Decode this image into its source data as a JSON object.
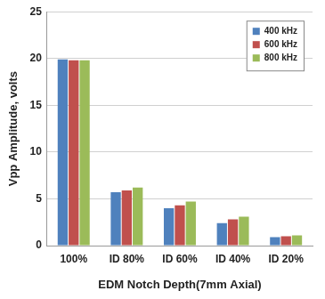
{
  "chart_data": {
    "type": "bar",
    "categories": [
      "100%",
      "ID 80%",
      "ID 60%",
      "ID 40%",
      "ID 20%"
    ],
    "series": [
      {
        "name": "400 kHz",
        "color": "#4f81bd",
        "values": [
          19.9,
          5.7,
          4.0,
          2.4,
          0.9
        ]
      },
      {
        "name": "600 kHz",
        "color": "#c0504d",
        "values": [
          19.8,
          5.9,
          4.3,
          2.8,
          1.0
        ]
      },
      {
        "name": "800 kHz",
        "color": "#9bbb59",
        "values": [
          19.8,
          6.2,
          4.7,
          3.1,
          1.1
        ]
      }
    ],
    "x_label": "EDM Notch Depth(7mm Axial)",
    "y_label": "Vpp Amplitude, volts",
    "ylim": [
      0,
      25
    ],
    "yticks": [
      0,
      5,
      10,
      15,
      20,
      25
    ],
    "grid": true,
    "legend": "upper right"
  }
}
